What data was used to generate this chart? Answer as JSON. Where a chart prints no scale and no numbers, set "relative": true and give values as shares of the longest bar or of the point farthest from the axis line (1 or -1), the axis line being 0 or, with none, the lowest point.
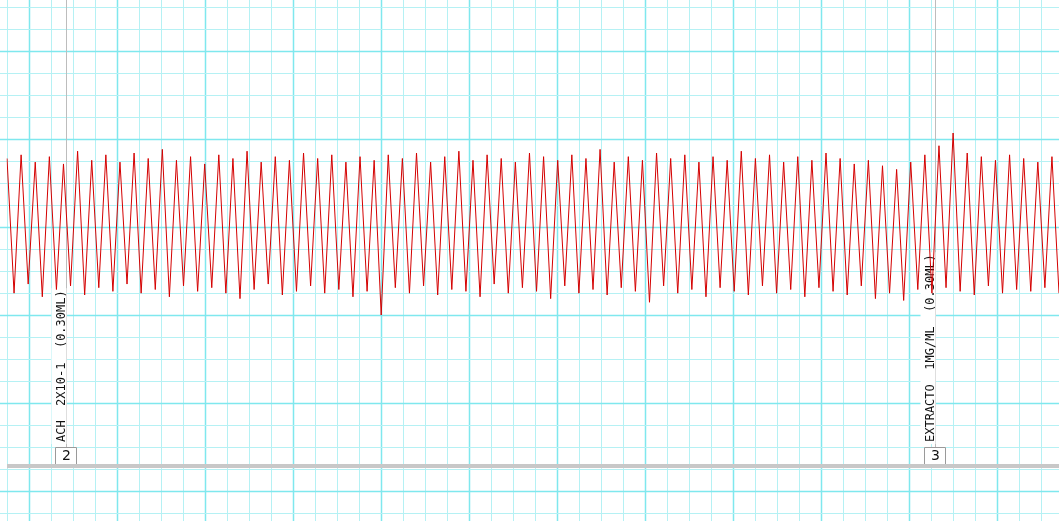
{
  "chart_data": {
    "type": "line",
    "relative": true,
    "grid": true,
    "marker": "none",
    "line_style": "solid",
    "legend": false,
    "categories": [
      null,
      null,
      null,
      null,
      null,
      null,
      null,
      null,
      null,
      null,
      null,
      null,
      null,
      null,
      null,
      null,
      null,
      null,
      null,
      null,
      null,
      null,
      null,
      null,
      null,
      null,
      null,
      null,
      null,
      null,
      null,
      null,
      null,
      null,
      null,
      null,
      null,
      null,
      null,
      null,
      null,
      null,
      null,
      null,
      null,
      null,
      null,
      null,
      null,
      null,
      null,
      null,
      null,
      null,
      null,
      null,
      null,
      null,
      null,
      null,
      null,
      null,
      null,
      null,
      null,
      null,
      null,
      null,
      null,
      null,
      null,
      null,
      null,
      null,
      null,
      null,
      null,
      null,
      null,
      null,
      null,
      null,
      null,
      null,
      null,
      null,
      null,
      null,
      null,
      null,
      null,
      null,
      null,
      null,
      null,
      null,
      null,
      null,
      null,
      null,
      null,
      null,
      null,
      null,
      null,
      null,
      null,
      null,
      null,
      null,
      null,
      null,
      null,
      null,
      null,
      null,
      null,
      null,
      null,
      null,
      null,
      null,
      null,
      null,
      null,
      null,
      null,
      null,
      null,
      null,
      null,
      null,
      null,
      null,
      null,
      null,
      null,
      null,
      null,
      null,
      null,
      null,
      null,
      null,
      null,
      null,
      null,
      null,
      null,
      null
    ],
    "series": [
      {
        "color": "#d40000",
        "values": [
          0.86,
          0.12,
          0.88,
          0.17,
          0.84,
          0.1,
          0.87,
          0.14,
          0.83,
          0.16,
          0.9,
          0.11,
          0.85,
          0.15,
          0.88,
          0.13,
          0.84,
          0.17,
          0.89,
          0.12,
          0.86,
          0.14,
          0.91,
          0.1,
          0.85,
          0.16,
          0.87,
          0.13,
          0.83,
          0.15,
          0.88,
          0.12,
          0.86,
          0.09,
          0.9,
          0.14,
          0.84,
          0.17,
          0.87,
          0.11,
          0.85,
          0.13,
          0.89,
          0.16,
          0.86,
          0.12,
          0.88,
          0.14,
          0.84,
          0.1,
          0.87,
          0.13,
          0.85,
          0,
          0.88,
          0.15,
          0.86,
          0.12,
          0.89,
          0.16,
          0.84,
          0.11,
          0.87,
          0.14,
          0.9,
          0.13,
          0.85,
          0.1,
          0.88,
          0.17,
          0.86,
          0.12,
          0.84,
          0.15,
          0.89,
          0.13,
          0.87,
          0.09,
          0.85,
          0.16,
          0.88,
          0.12,
          0.86,
          0.14,
          0.91,
          0.11,
          0.84,
          0.15,
          0.87,
          0.13,
          0.85,
          0.07,
          0.89,
          0.16,
          0.86,
          0.12,
          0.88,
          0.14,
          0.84,
          0.1,
          0.87,
          0.15,
          0.85,
          0.13,
          0.9,
          0.11,
          0.86,
          0.16,
          0.88,
          0.12,
          0.84,
          0.14,
          0.87,
          0.1,
          0.85,
          0.15,
          0.89,
          0.13,
          0.86,
          0.11,
          0.83,
          0.16,
          0.85,
          0.09,
          0.82,
          0.12,
          0.8,
          0.08,
          0.84,
          0.14,
          0.88,
          0.12,
          0.93,
          0.15,
          1,
          0.13,
          0.89,
          0.11,
          0.87,
          0.16,
          0.85,
          0.12,
          0.88,
          0.14,
          0.86,
          0.13,
          0.84,
          0.15,
          0.87,
          0.12
        ]
      }
    ],
    "annotations": [
      "ACH  2X10-1  (0.30ML)",
      "2",
      "EXTRACTO  1MG/ML  (0.30ML)",
      "3"
    ]
  }
}
